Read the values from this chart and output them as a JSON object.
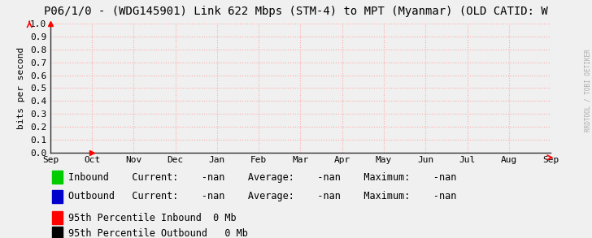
{
  "title": "P06/1/0 - (WDG145901) Link 622 Mbps (STM-4) to MPT (Myanmar) (OLD CATID: W",
  "ylabel": "bits per second",
  "background_color": "#f0f0f0",
  "plot_bg_color": "#f0f0f0",
  "grid_color": "#ffaaaa",
  "ylim": [
    0.0,
    1.0
  ],
  "yticks": [
    0.0,
    0.1,
    0.2,
    0.3,
    0.4,
    0.5,
    0.6,
    0.7,
    0.8,
    0.9,
    1.0
  ],
  "xtick_labels": [
    "Sep",
    "Oct",
    "Nov",
    "Dec",
    "Jan",
    "Feb",
    "Mar",
    "Apr",
    "May",
    "Jun",
    "Jul",
    "Aug",
    "Sep"
  ],
  "watermark": "RRDTOOL / TOBI OETIKER",
  "legend_rows": [
    {
      "color": "#00cc00",
      "label": "Inbound",
      "current": "-nan",
      "average": "-nan",
      "maximum": "-nan"
    },
    {
      "color": "#0000cc",
      "label": "Outbound",
      "current": "-nan",
      "average": "-nan",
      "maximum": "-nan"
    }
  ],
  "percentile_rows": [
    {
      "color": "#ff0000",
      "label": "95th Percentile Inbound",
      "value": "0 Mb"
    },
    {
      "color": "#000000",
      "label": "95th Percentile Outbound",
      "value": "0 Mb"
    }
  ],
  "title_fontsize": 10,
  "tick_fontsize": 8,
  "legend_fontsize": 8.5,
  "ylabel_fontsize": 8
}
